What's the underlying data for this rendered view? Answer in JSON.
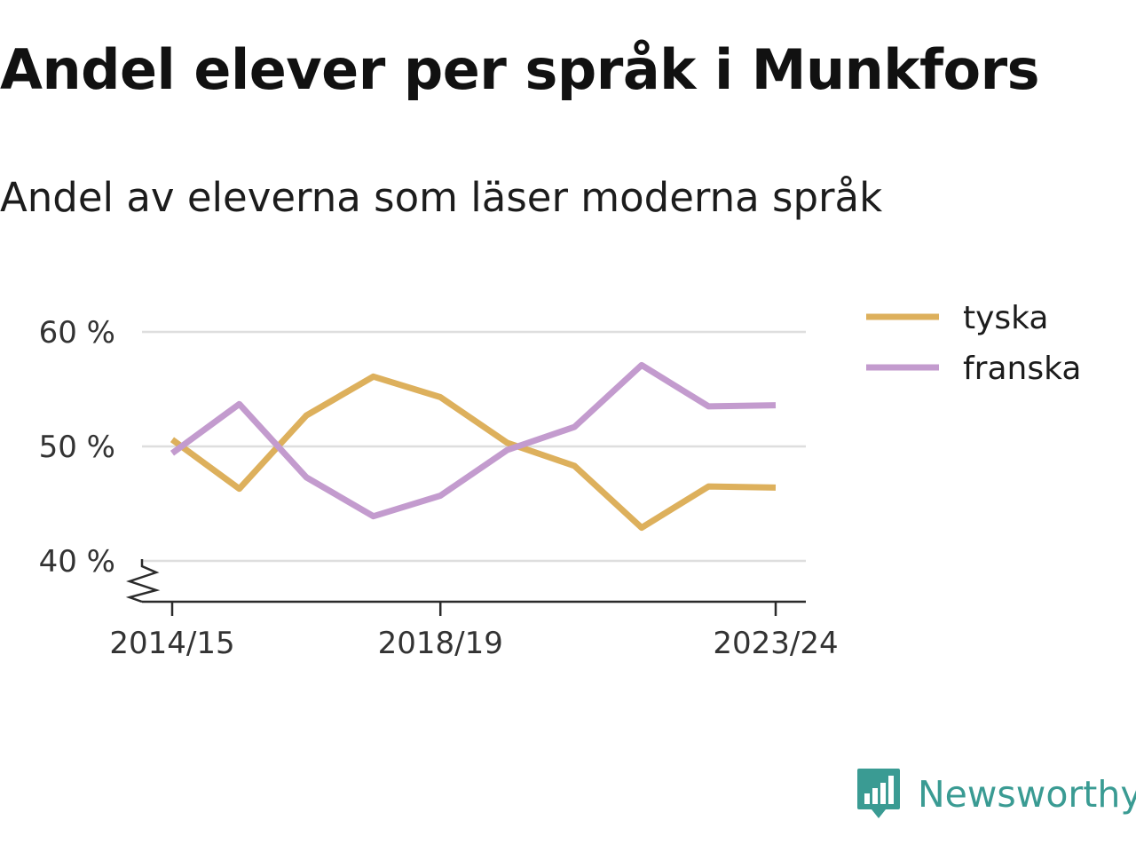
{
  "header": {
    "title": "Andel elever per språk i Munkfors",
    "subtitle": "Andel av eleverna som läser moderna språk"
  },
  "brand": {
    "name": "Newsworthy",
    "color": "#3a9b93",
    "icon": "bar-chart-speech-bubble-icon"
  },
  "chart_data": {
    "type": "line",
    "x": [
      "2014/15",
      "2015/16",
      "2016/17",
      "2017/18",
      "2018/19",
      "2019/20",
      "2020/21",
      "2021/22",
      "2022/23",
      "2023/24"
    ],
    "x_ticks": [
      "2014/15",
      "2018/19",
      "2023/24"
    ],
    "y_ticks": [
      40,
      50,
      60
    ],
    "y_tick_labels": [
      "40 %",
      "50 %",
      "60 %"
    ],
    "ylim": [
      36.5,
      60
    ],
    "y_axis_break": true,
    "grid": true,
    "legend_position": "top-right",
    "series": [
      {
        "name": "tyska",
        "color": "#ddb05c",
        "values": [
          50.6,
          46.3,
          52.7,
          56.1,
          54.3,
          50.3,
          48.3,
          42.9,
          46.5,
          46.4
        ]
      },
      {
        "name": "franska",
        "color": "#c39bce",
        "values": [
          49.4,
          53.7,
          47.3,
          43.9,
          45.7,
          49.7,
          51.7,
          57.1,
          53.5,
          53.6
        ]
      }
    ]
  }
}
